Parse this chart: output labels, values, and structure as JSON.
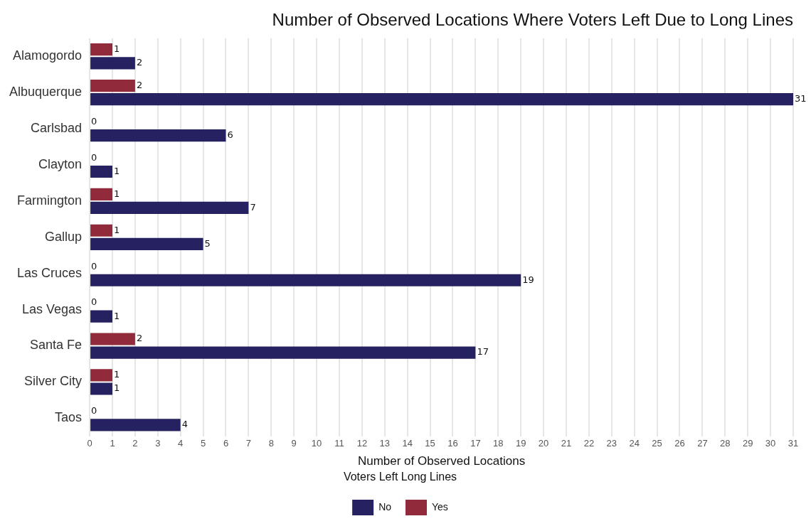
{
  "chart_data": {
    "type": "bar",
    "orientation": "horizontal",
    "title": "Number of Observed Locations Where Voters Left Due to Long Lines",
    "xlabel": "Number of Observed Locations",
    "legend_title": "Voters Left Long Lines",
    "categories": [
      "Alamogordo",
      "Albuquerque",
      "Carlsbad",
      "Clayton",
      "Farmington",
      "Gallup",
      "Las Cruces",
      "Las Vegas",
      "Santa Fe",
      "Silver City",
      "Taos"
    ],
    "series": [
      {
        "name": "Yes",
        "color": "#912a3a",
        "values": [
          1,
          2,
          0,
          0,
          1,
          1,
          0,
          0,
          2,
          1,
          0
        ]
      },
      {
        "name": "No",
        "color": "#262262",
        "values": [
          2,
          31,
          6,
          1,
          7,
          5,
          19,
          1,
          17,
          1,
          4
        ]
      }
    ],
    "xlim": [
      0,
      31
    ],
    "xticks": [
      0,
      1,
      2,
      3,
      4,
      5,
      6,
      7,
      8,
      9,
      10,
      11,
      12,
      13,
      14,
      15,
      16,
      17,
      18,
      19,
      20,
      21,
      22,
      23,
      24,
      25,
      26,
      27,
      28,
      29,
      30,
      31
    ],
    "grid": "x",
    "legend": "bottom",
    "data_labels": true
  }
}
